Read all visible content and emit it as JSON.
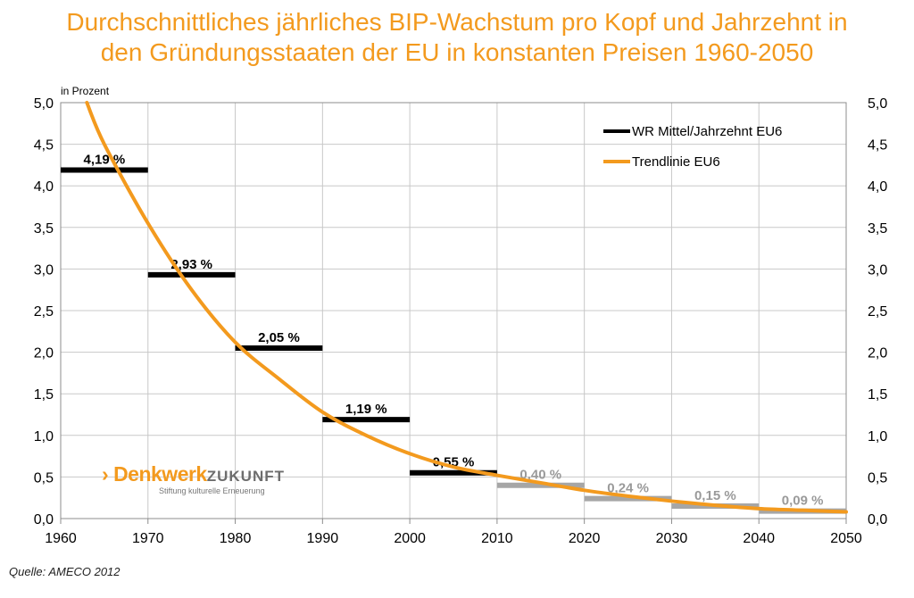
{
  "title": {
    "line1": "Durchschnittliches jährliches BIP-Wachstum pro Kopf und Jahrzehnt in",
    "line2": "den Gründungsstaaten der EU in konstanten Preisen 1960-2050"
  },
  "source": "Quelle: AMECO 2012",
  "logo": {
    "brand": "Denkwerk",
    "brand2": "ZUKUNFT",
    "tagline": "Stiftung kulturelle Erneuerung",
    "chevron": "›"
  },
  "colors": {
    "title": "#f39a1e",
    "trend": "#f39a1e",
    "actual": "#000000",
    "forecast": "#a6a6a6",
    "grid": "#c8c8c8"
  },
  "chart_data": {
    "type": "line",
    "title": "Durchschnittliches jährliches BIP-Wachstum pro Kopf und Jahrzehnt in den Gründungsstaaten der EU in konstanten Preisen 1960-2050",
    "ylabel": "in Prozent",
    "xlabel": "",
    "xlim": [
      1960,
      2050
    ],
    "ylim": [
      0,
      5
    ],
    "x_ticks": [
      "1960",
      "1970",
      "1980",
      "1990",
      "2000",
      "2010",
      "2020",
      "2030",
      "2040",
      "2050"
    ],
    "y_ticks": [
      "0,0",
      "0,5",
      "1,0",
      "1,5",
      "2,0",
      "2,5",
      "3,0",
      "3,5",
      "4,0",
      "4,5",
      "5,0"
    ],
    "grid": true,
    "legend": {
      "position": "top-right",
      "entries": [
        "WR Mittel/Jahrzehnt EU6",
        "Trendlinie EU6"
      ]
    },
    "series": [
      {
        "name": "WR Mittel/Jahrzehnt EU6",
        "decades": [
          {
            "from": 1960,
            "to": 1970,
            "value": 4.19,
            "label": "4,19 %",
            "forecast": false
          },
          {
            "from": 1970,
            "to": 1980,
            "value": 2.93,
            "label": "2,93 %",
            "forecast": false
          },
          {
            "from": 1980,
            "to": 1990,
            "value": 2.05,
            "label": "2,05 %",
            "forecast": false
          },
          {
            "from": 1990,
            "to": 2000,
            "value": 1.19,
            "label": "1,19 %",
            "forecast": false
          },
          {
            "from": 2000,
            "to": 2010,
            "value": 0.55,
            "label": "0,55 %",
            "forecast": false
          },
          {
            "from": 2010,
            "to": 2020,
            "value": 0.4,
            "label": "0,40 %",
            "forecast": true
          },
          {
            "from": 2020,
            "to": 2030,
            "value": 0.24,
            "label": "0,24 %",
            "forecast": true
          },
          {
            "from": 2030,
            "to": 2040,
            "value": 0.15,
            "label": "0,15 %",
            "forecast": true
          },
          {
            "from": 2040,
            "to": 2050,
            "value": 0.09,
            "label": "0,09 %",
            "forecast": true
          }
        ]
      },
      {
        "name": "Trendlinie EU6",
        "x": [
          1963,
          1965,
          1970,
          1975,
          1980,
          1985,
          1990,
          1995,
          2000,
          2005,
          2010,
          2015,
          2020,
          2025,
          2030,
          2035,
          2040,
          2045,
          2050
        ],
        "y": [
          5.0,
          4.5,
          3.55,
          2.75,
          2.12,
          1.68,
          1.28,
          1.0,
          0.78,
          0.62,
          0.52,
          0.43,
          0.34,
          0.27,
          0.21,
          0.16,
          0.12,
          0.1,
          0.08
        ]
      }
    ]
  }
}
